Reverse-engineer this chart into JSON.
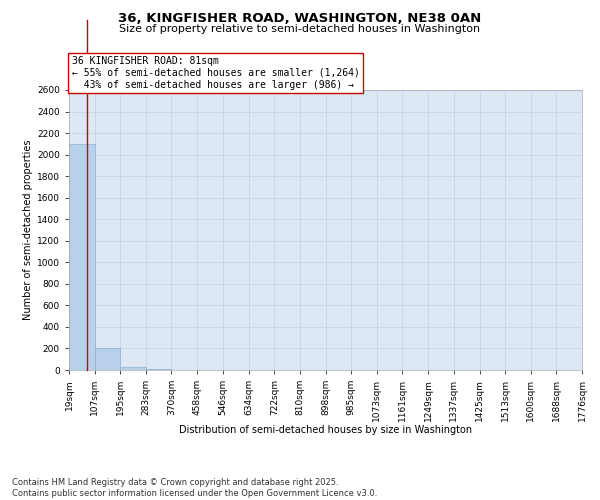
{
  "title": "36, KINGFISHER ROAD, WASHINGTON, NE38 0AN",
  "subtitle": "Size of property relative to semi-detached houses in Washington",
  "xlabel": "Distribution of semi-detached houses by size in Washington",
  "ylabel": "Number of semi-detached properties",
  "annotation_line1": "36 KINGFISHER ROAD: 81sqm",
  "annotation_line2": "← 55% of semi-detached houses are smaller (1,264)",
  "annotation_line3": "  43% of semi-detached houses are larger (986) →",
  "bin_edges": [
    19,
    107,
    195,
    283,
    370,
    458,
    546,
    634,
    722,
    810,
    898,
    985,
    1073,
    1161,
    1249,
    1337,
    1425,
    1513,
    1600,
    1688,
    1776
  ],
  "bin_labels": [
    "19sqm",
    "107sqm",
    "195sqm",
    "283sqm",
    "370sqm",
    "458sqm",
    "546sqm",
    "634sqm",
    "722sqm",
    "810sqm",
    "898sqm",
    "985sqm",
    "1073sqm",
    "1161sqm",
    "1249sqm",
    "1337sqm",
    "1425sqm",
    "1513sqm",
    "1600sqm",
    "1688sqm",
    "1776sqm"
  ],
  "bar_heights": [
    2100,
    200,
    30,
    5,
    3,
    2,
    2,
    1,
    1,
    1,
    1,
    0,
    0,
    0,
    0,
    0,
    0,
    0,
    0,
    0
  ],
  "bar_color": "#b8d0ea",
  "bar_edge_color": "#8ab0d8",
  "grid_color": "#c8d4e8",
  "bg_color": "#dde8f4",
  "vline_color": "#cc0000",
  "vline_x": 81,
  "ylim": [
    0,
    2600
  ],
  "yticks": [
    0,
    200,
    400,
    600,
    800,
    1000,
    1200,
    1400,
    1600,
    1800,
    2000,
    2200,
    2400,
    2600
  ],
  "footnote": "Contains HM Land Registry data © Crown copyright and database right 2025.\nContains public sector information licensed under the Open Government Licence v3.0.",
  "title_fontsize": 9.5,
  "subtitle_fontsize": 8,
  "axis_label_fontsize": 7,
  "tick_fontsize": 6.5,
  "annotation_fontsize": 7,
  "footnote_fontsize": 6
}
